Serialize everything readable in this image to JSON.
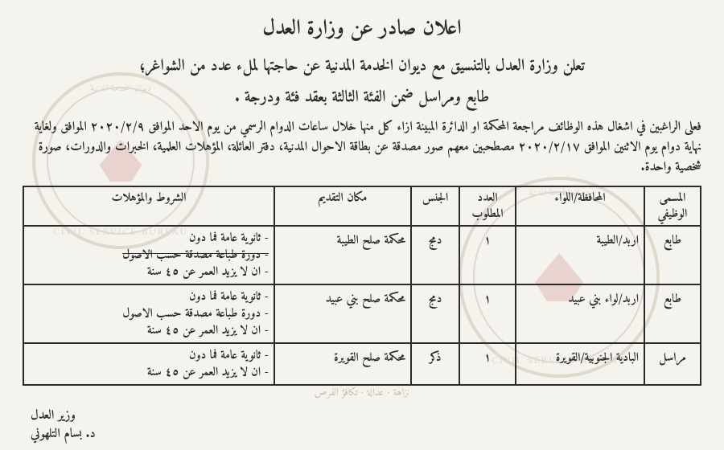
{
  "title": "اعلان صادر عن وزارة العدل",
  "subtitle": "تعلن وزارة العدل بالتنسيق مع ديوان الخدمة المدنية عن حاجتها لملء عدد من الشواغر؛",
  "subline": "طابع ومراسل ضمن الفئة الثالثة بعقد فئة ودرجة .",
  "body": "فعلى الراغبين في اشغال هذه الوظائف مراجعة المحكمة او الدائرة المبينة ازاء كل منها خلال ساعات الدوام الرسمي من يوم الاحد الموافق ٢٠٢٠/٢/٩ الموافق ولغاية نهاية دوام يوم الاثنين الموافق ٢٠٢٠/٢/١٧ مصطحبين معهم صور مصدقة عن بطاقة الاحوال المدنية، دفتر العائلة، المؤهلات العلمية، الخبرات والدورات، صورة شخصية واحدة.",
  "headers": {
    "job": "المسمى\nالوظيفي",
    "gov": "المحافظة/اللواء",
    "num": "العدد\nالمطلوب",
    "gen": "الجنس",
    "place": "مكان التقديم",
    "req": "الشروط والمؤهلات"
  },
  "rows": [
    {
      "job": "طابع",
      "gov": "اربد/الطيبة",
      "num": "١",
      "gen": "دمج",
      "place": "محكمة صلح الطيبة",
      "req": [
        "- ثانوية عامة فما دون",
        "- دورة طباعة مصدقة حسب الاصول",
        "- ان لا يزيد العمر عن ٤٥ سنة"
      ],
      "strike_req_idx": 1
    },
    {
      "job": "طابع",
      "gov": "اربد/لواء بني عبيد",
      "num": "١",
      "gen": "دمج",
      "place": "محكمة صلح بني عبيد",
      "req": [
        "- ثانوية عامة فما دون",
        "- دورة طباعة مصدقة حسب الاصول",
        "- ان لا يزيد العمر عن ٤٥ سنة"
      ]
    },
    {
      "job": "مراسل",
      "gov": "البادية الجنوبية/القويرة",
      "num": "١",
      "gen": "ذكر",
      "place": "محكمة صلح القويرة",
      "req": [
        "- ثانوية عامة فما دون",
        "- ان لا يزيد العمر عن ٤٥ سنة"
      ]
    }
  ],
  "motto": "نزاهة · عدالة · تكافؤ الفرص",
  "signature": {
    "line1": "وزير العدل",
    "line2": "د. بسام التلهوني"
  },
  "seal_text": {
    "top_ar": "ديوان الخدمة المدنية",
    "bot_en": "CIVIL SERVICE BUREAU"
  },
  "colors": {
    "bg": "#f5f3ee",
    "text": "#2a2a2a",
    "border": "#2a2a2a",
    "seal_ring": "#7a6a3a",
    "seal_center": "#b44a4a"
  }
}
